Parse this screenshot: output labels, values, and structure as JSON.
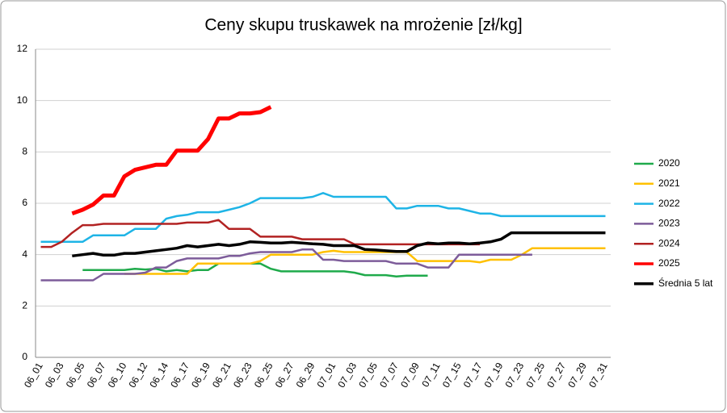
{
  "chart_data": {
    "type": "line",
    "title": "Ceny skupu truskawek na mrożenie [zł/kg]",
    "categories": [
      "06_01",
      null,
      "06_03",
      null,
      "06_05",
      null,
      "06_07",
      null,
      "06_10",
      null,
      "06_12",
      null,
      "06_14",
      null,
      "06_17",
      null,
      "06_19",
      null,
      "06_21",
      null,
      "06_23",
      null,
      "06_25",
      null,
      "06_27",
      null,
      "06_29",
      null,
      "07_01",
      null,
      "07_03",
      null,
      "07_05",
      null,
      "07_07",
      null,
      "07_09",
      null,
      "07_11",
      null,
      "07_15",
      null,
      "07_17",
      null,
      "07_19",
      null,
      "07_23",
      null,
      "07_25",
      null,
      "07_27",
      null,
      "07_29",
      null,
      "07_31"
    ],
    "ylim": [
      0,
      12
    ],
    "yticks": [
      0,
      2,
      4,
      6,
      8,
      10,
      12
    ],
    "grid": true,
    "legend": "right",
    "series": [
      {
        "name": "2020",
        "color": "#1faa4b",
        "line_width": 2.5,
        "values": [
          null,
          null,
          null,
          null,
          3.4,
          3.4,
          3.4,
          3.4,
          3.4,
          3.45,
          3.42,
          3.45,
          3.35,
          3.4,
          3.35,
          3.4,
          3.4,
          3.65,
          3.65,
          3.65,
          3.65,
          3.65,
          3.45,
          3.35,
          3.35,
          3.35,
          3.35,
          3.35,
          3.35,
          3.35,
          3.3,
          3.2,
          3.2,
          3.2,
          3.15,
          3.18,
          3.18,
          3.18,
          null,
          null,
          null,
          null,
          null,
          null,
          null,
          null,
          null,
          null,
          null,
          null,
          null,
          null,
          null,
          null,
          null
        ]
      },
      {
        "name": "2021",
        "color": "#ffc000",
        "line_width": 2.5,
        "values": [
          null,
          null,
          null,
          null,
          null,
          null,
          null,
          null,
          3.25,
          3.25,
          3.25,
          3.25,
          3.25,
          3.25,
          3.25,
          3.65,
          3.65,
          3.65,
          3.65,
          3.65,
          3.65,
          3.75,
          4,
          4,
          4,
          4,
          4,
          4.1,
          4.15,
          4.1,
          4.1,
          4.1,
          4.1,
          4.1,
          4.1,
          4.1,
          3.75,
          3.75,
          3.75,
          3.75,
          3.75,
          3.75,
          3.7,
          3.8,
          3.8,
          3.8,
          4,
          4.25,
          4.25,
          4.25,
          4.25,
          4.25,
          4.25,
          4.25,
          4.25
        ]
      },
      {
        "name": "2022",
        "color": "#1eb4e6",
        "line_width": 2.5,
        "values": [
          4.5,
          4.5,
          4.5,
          4.5,
          4.5,
          4.75,
          4.75,
          4.75,
          4.75,
          5,
          5,
          5,
          5.4,
          5.5,
          5.55,
          5.65,
          5.65,
          5.65,
          5.75,
          5.85,
          6,
          6.2,
          6.2,
          6.2,
          6.2,
          6.2,
          6.25,
          6.4,
          6.25,
          6.25,
          6.25,
          6.25,
          6.25,
          6.25,
          5.8,
          5.8,
          5.9,
          5.9,
          5.9,
          5.8,
          5.8,
          5.7,
          5.6,
          5.6,
          5.5,
          5.5,
          5.5,
          5.5,
          5.5,
          5.5,
          5.5,
          5.5,
          5.5,
          5.5,
          5.5
        ]
      },
      {
        "name": "2023",
        "color": "#7d5c9a",
        "line_width": 2.5,
        "values": [
          3,
          3,
          3,
          3,
          3,
          3,
          3.25,
          3.25,
          3.25,
          3.25,
          3.3,
          3.5,
          3.5,
          3.75,
          3.85,
          3.85,
          3.85,
          3.85,
          3.95,
          3.95,
          4.05,
          4.1,
          4.1,
          4.1,
          4.1,
          4.2,
          4.2,
          3.8,
          3.8,
          3.75,
          3.75,
          3.75,
          3.75,
          3.75,
          3.65,
          3.65,
          3.65,
          3.5,
          3.5,
          3.5,
          4,
          4,
          4,
          4,
          4,
          4,
          4,
          4,
          null,
          null,
          null,
          null,
          null,
          null,
          null
        ]
      },
      {
        "name": "2024",
        "color": "#b22222",
        "line_width": 2.5,
        "values": [
          4.3,
          4.3,
          4.5,
          4.85,
          5.15,
          5.15,
          5.2,
          5.2,
          5.2,
          5.2,
          5.2,
          5.2,
          5.2,
          5.2,
          5.25,
          5.25,
          5.25,
          5.35,
          5,
          5,
          5,
          4.7,
          4.7,
          4.7,
          4.7,
          4.6,
          4.6,
          4.6,
          4.6,
          4.6,
          4.4,
          4.4,
          4.4,
          4.4,
          4.4,
          4.4,
          4.4,
          4.4,
          4.4,
          4.4,
          4.4,
          4.4,
          4.4,
          null,
          null,
          null,
          null,
          null,
          null,
          null,
          null,
          null,
          null,
          null,
          null
        ]
      },
      {
        "name": "2025",
        "color": "#ff0000",
        "line_width": 5,
        "values": [
          null,
          null,
          null,
          5.6,
          5.75,
          5.95,
          6.3,
          6.3,
          7.05,
          7.3,
          7.4,
          7.5,
          7.5,
          8.05,
          8.05,
          8.05,
          8.5,
          9.3,
          9.3,
          9.5,
          9.5,
          9.55,
          9.75,
          null,
          null,
          null,
          null,
          null,
          null,
          null,
          null,
          null,
          null,
          null,
          null,
          null,
          null,
          null,
          null,
          null,
          null,
          null,
          null,
          null,
          null,
          null,
          null,
          null,
          null,
          null,
          null,
          null,
          null,
          null,
          null
        ]
      },
      {
        "name": "Średnia 5 lat",
        "color": "#000000",
        "line_width": 3.5,
        "values": [
          null,
          null,
          null,
          3.95,
          4,
          4.05,
          3.98,
          3.98,
          4.05,
          4.05,
          4.1,
          4.15,
          4.2,
          4.25,
          4.35,
          4.3,
          4.35,
          4.4,
          4.35,
          4.4,
          4.5,
          4.48,
          4.45,
          4.45,
          4.48,
          4.45,
          4.42,
          4.4,
          4.35,
          4.35,
          4.35,
          4.2,
          4.18,
          4.15,
          4.12,
          4.12,
          4.35,
          4.45,
          4.42,
          4.45,
          4.45,
          4.42,
          4.45,
          4.5,
          4.6,
          4.85,
          4.85,
          4.85,
          4.85,
          4.85,
          4.85,
          4.85,
          4.85,
          4.85,
          4.85
        ]
      }
    ]
  }
}
